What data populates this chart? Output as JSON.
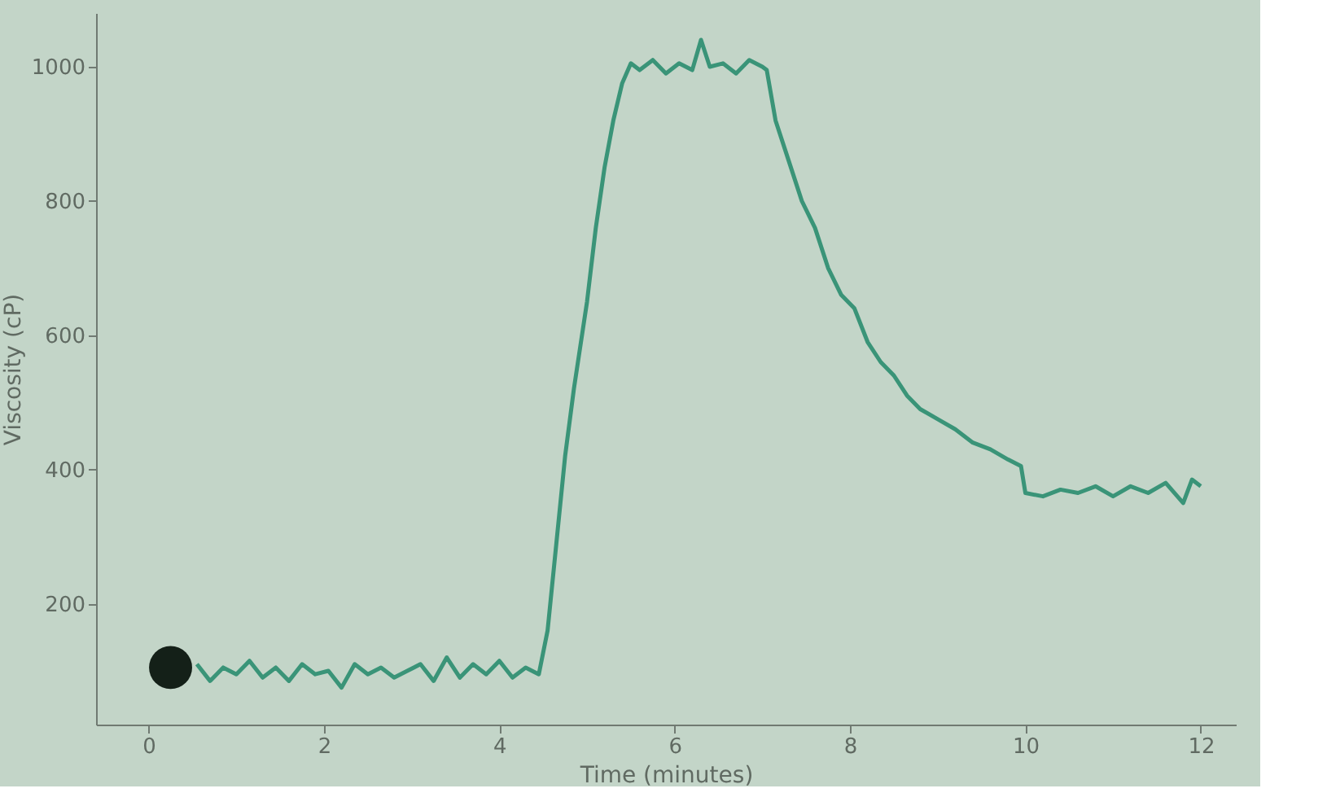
{
  "chart_data": {
    "type": "line",
    "xlabel": "Time (minutes)",
    "ylabel": "Viscosity (cP)",
    "xlim": [
      -0.6,
      12.4
    ],
    "ylim": [
      20,
      1080
    ],
    "xticks": [
      0,
      2,
      4,
      6,
      8,
      10,
      12
    ],
    "yticks": [
      200,
      400,
      600,
      800,
      1000
    ],
    "grid": false,
    "series": [
      {
        "color": "#3a9478",
        "type": "line",
        "marker": "none",
        "line_style": "solid",
        "x": [
          0.55,
          0.7,
          0.85,
          1.0,
          1.15,
          1.3,
          1.45,
          1.6,
          1.75,
          1.9,
          2.05,
          2.2,
          2.35,
          2.5,
          2.65,
          2.8,
          2.95,
          3.1,
          3.25,
          3.4,
          3.55,
          3.7,
          3.85,
          4.0,
          4.15,
          4.3,
          4.45,
          4.55,
          4.65,
          4.75,
          4.85,
          5.0,
          5.1,
          5.2,
          5.3,
          5.4,
          5.5,
          5.6,
          5.75,
          5.9,
          6.05,
          6.2,
          6.3,
          6.4,
          6.55,
          6.7,
          6.85,
          7.0,
          7.05,
          7.15,
          7.3,
          7.45,
          7.6,
          7.75,
          7.9,
          8.05,
          8.2,
          8.35,
          8.5,
          8.65,
          8.8,
          9.0,
          9.2,
          9.4,
          9.6,
          9.8,
          9.95,
          10.0,
          10.2,
          10.4,
          10.6,
          10.8,
          11.0,
          11.2,
          11.4,
          11.6,
          11.8,
          11.9,
          12.0
        ],
        "values": [
          110,
          85,
          105,
          95,
          115,
          90,
          105,
          85,
          110,
          95,
          100,
          75,
          110,
          95,
          105,
          90,
          100,
          110,
          85,
          120,
          90,
          110,
          95,
          115,
          90,
          105,
          95,
          160,
          290,
          420,
          520,
          650,
          760,
          850,
          920,
          975,
          1005,
          995,
          1010,
          990,
          1005,
          995,
          1040,
          1000,
          1005,
          990,
          1010,
          1000,
          995,
          920,
          860,
          800,
          760,
          700,
          660,
          640,
          590,
          560,
          540,
          510,
          490,
          475,
          460,
          440,
          430,
          415,
          405,
          365,
          360,
          370,
          365,
          375,
          360,
          375,
          365,
          380,
          350,
          385,
          375
        ]
      },
      {
        "color": "#142018",
        "type": "scatter",
        "marker": "circle",
        "x": [
          0.25
        ],
        "values": [
          105
        ]
      }
    ]
  }
}
